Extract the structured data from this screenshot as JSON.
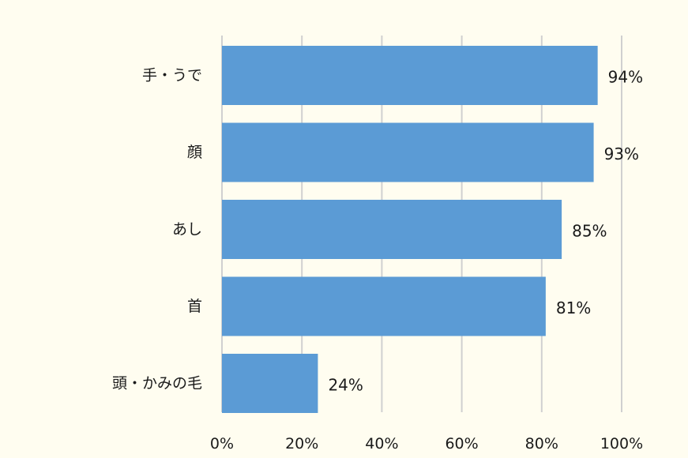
{
  "chart_data": {
    "type": "bar",
    "orientation": "horizontal",
    "categories": [
      "手・うで",
      "顔",
      "あし",
      "首",
      "頭・かみの毛"
    ],
    "values": [
      94,
      93,
      85,
      81,
      24
    ],
    "value_labels": [
      "94%",
      "93%",
      "85%",
      "81%",
      "24%"
    ],
    "xlim": [
      0,
      100
    ],
    "x_ticks": [
      0,
      20,
      40,
      60,
      80,
      100
    ],
    "x_tick_labels": [
      "0%",
      "20%",
      "40%",
      "60%",
      "80%",
      "100%"
    ],
    "grid": "vertical",
    "legend": "none",
    "bar_color": "#5b9bd5",
    "grid_color": "#d0d0d0",
    "background_color": "#fffdf0"
  }
}
